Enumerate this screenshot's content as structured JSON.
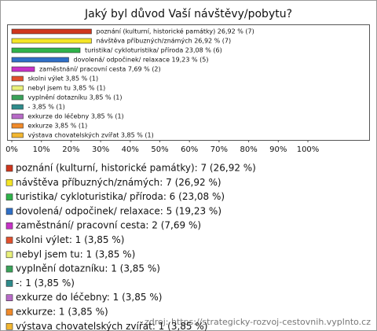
{
  "chart_data": {
    "type": "bar",
    "orientation": "horizontal",
    "title": "Jaký byl důvod Vaší návštěvy/pobytu?",
    "values": [
      26.92,
      26.92,
      23.08,
      19.23,
      7.69,
      3.85,
      3.85,
      3.85,
      3.85,
      3.85,
      3.85,
      3.85
    ],
    "value_labels": [
      "poznání (kulturní, historické památky) 26,92 % (7)",
      "návštěva příbuzných/známých 26,92 % (7)",
      "turistika/ cykloturistika/ příroda 23,08 % (6)",
      "dovolená/ odpočinek/ relaxace 19,23 % (5)",
      "zaměstnání/ pracovní cesta 7,69 % (2)",
      "skolni výlet 3,85 % (1)",
      "nebyl jsem tu 3,85 % (1)",
      "vyplnění dotazníku 3,85 % (1)",
      "- 3,85 % (1)",
      "exkurze do léčebny 3,85 % (1)",
      "exkurze 3,85 % (1)",
      "výstava chovatelských zvířat 3,85 % (1)"
    ],
    "legend_labels": [
      "poznání (kulturní, historické památky): 7 (26,92 %)",
      "návštěva příbuzných/známých: 7 (26,92 %)",
      "turistika/ cykloturistika/ příroda: 6 (23,08 %)",
      "dovolená/ odpočinek/ relaxace: 5 (19,23 %)",
      "zaměstnání/ pracovní cesta: 2 (7,69 %)",
      "skolni výlet: 1 (3,85 %)",
      "nebyl jsem tu: 1 (3,85 %)",
      "vyplnění dotazníku: 1 (3,85 %)",
      "-: 1 (3,85 %)",
      "exkurze do léčebny: 1 (3,85 %)",
      "exkurze: 1 (3,85 %)",
      "výstava chovatelských zvířat: 1 (3,85 %)"
    ],
    "colors": [
      "#d0361c",
      "#f4e526",
      "#2fb34a",
      "#2e6fc7",
      "#c732c7",
      "#e2502c",
      "#e8f07a",
      "#3aa35a",
      "#2e8b8b",
      "#b86bc8",
      "#f08a2a",
      "#f2b630"
    ],
    "xlim": [
      0,
      100
    ],
    "xticks": [
      {
        "value": 0,
        "label": "0%"
      },
      {
        "value": 10,
        "label": "10%"
      },
      {
        "value": 20,
        "label": "20%"
      },
      {
        "value": 30,
        "label": "30%"
      },
      {
        "value": 40,
        "label": "40%"
      },
      {
        "value": 50,
        "label": "50%"
      },
      {
        "value": 60,
        "label": "60%"
      },
      {
        "value": 70,
        "label": "70%"
      },
      {
        "value": 80,
        "label": "80%"
      },
      {
        "value": 90,
        "label": "90%"
      },
      {
        "value": 100,
        "label": "100%"
      }
    ],
    "source": "zdroj: https://strategicky-rozvoj-cestovnih.vyplnto.cz"
  }
}
